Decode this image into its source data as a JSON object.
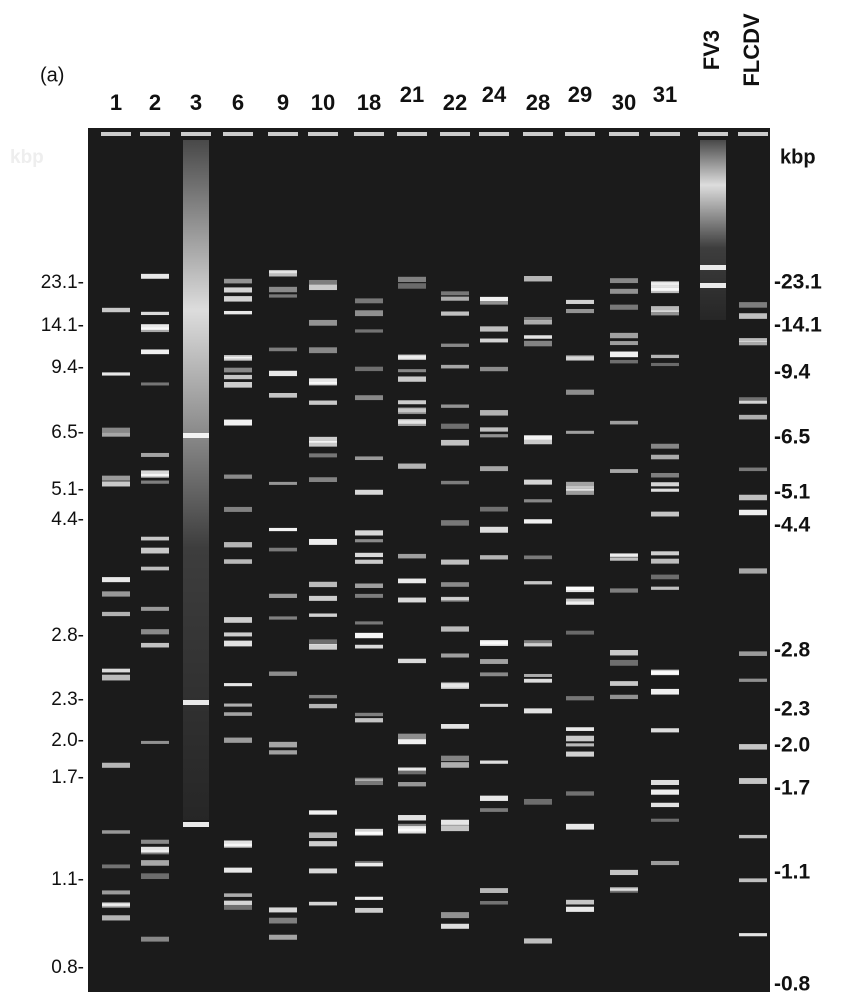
{
  "panel_label": "(a)",
  "lanes": [
    "1",
    "2",
    "3",
    "6",
    "9",
    "10",
    "18",
    "21",
    "22",
    "24",
    "28",
    "29",
    "30",
    "31",
    "FV3",
    "FLCDV"
  ],
  "left_axis": {
    "unit": "kbp",
    "markers": [
      "23.1-",
      "14.1-",
      "9.4-",
      "6.5-",
      "5.1-",
      "4.4-",
      "2.8-",
      "2.3-",
      "2.0-",
      "1.7-",
      "1.1-",
      "0.8-"
    ]
  },
  "right_axis": {
    "unit": "kbp",
    "markers": [
      "-23.1",
      "-14.1",
      "-9.4",
      "-6.5",
      "-5.1",
      "-4.4",
      "-2.8",
      "-2.3",
      "-2.0",
      "-1.7",
      "-1.1",
      "-0.8"
    ]
  }
}
